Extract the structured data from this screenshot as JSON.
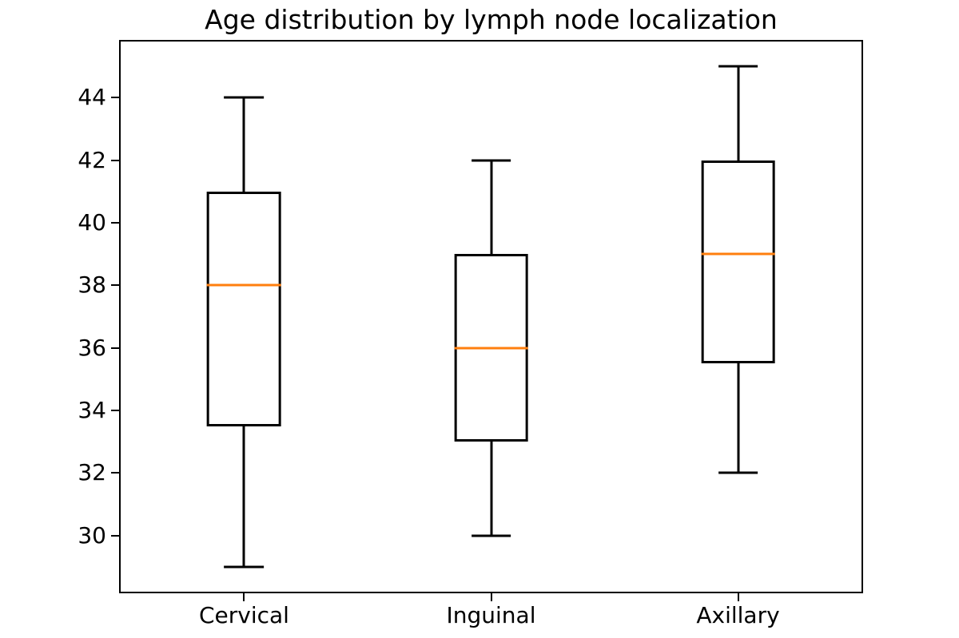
{
  "title": "Age distribution by lymph node localization",
  "chart_data": {
    "type": "boxplot",
    "title": "Age distribution by lymph node localization",
    "categories": [
      "Cervical",
      "Inguinal",
      "Axillary"
    ],
    "series": [
      {
        "name": "Cervical",
        "whisker_low": 29,
        "q1": 33.5,
        "median": 38,
        "q3": 41,
        "whisker_high": 44
      },
      {
        "name": "Inguinal",
        "whisker_low": 30,
        "q1": 33,
        "median": 36,
        "q3": 39,
        "whisker_high": 42
      },
      {
        "name": "Axillary",
        "whisker_low": 32,
        "q1": 35.5,
        "median": 39,
        "q3": 42,
        "whisker_high": 45
      }
    ],
    "xlabel": "",
    "ylabel": "",
    "yticks": [
      30,
      32,
      34,
      36,
      38,
      40,
      42,
      44
    ],
    "ylim": [
      28.2,
      45.8
    ],
    "xlim": [
      0.5,
      3.5
    ],
    "positions": [
      1,
      2,
      3
    ],
    "box_width_units": 0.3,
    "cap_width_units": 0.161,
    "grid": false,
    "legend": "none",
    "colors": {
      "line": "#000000",
      "median": "#ff7f0e",
      "background": "#ffffff"
    }
  }
}
